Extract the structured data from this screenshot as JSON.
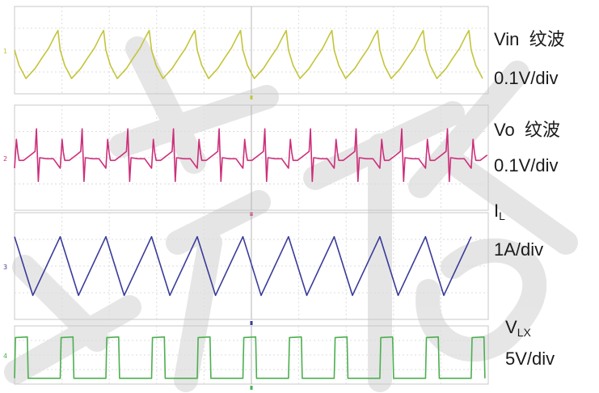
{
  "chart_data": {
    "type": "line",
    "period_div": 0.964,
    "points_per_period": 24,
    "panels": [
      {
        "id": "vin",
        "title": "Vin 纹波",
        "title_main": "Vin",
        "title_suffix": "纹波",
        "scale": "0.1V/div",
        "color": "#c4c43a",
        "ground_marker_label": "1",
        "xlim": [
          0,
          10
        ],
        "ylim": [
          -1,
          1
        ],
        "cycle": [
          [
            0.0,
            0.0
          ],
          [
            0.1,
            -0.35
          ],
          [
            0.25,
            -0.65
          ],
          [
            0.45,
            -0.42
          ],
          [
            0.6,
            -0.18
          ],
          [
            0.75,
            0.05
          ],
          [
            0.88,
            0.32
          ],
          [
            0.95,
            0.45
          ],
          [
            1.0,
            0.0
          ]
        ]
      },
      {
        "id": "vo",
        "title": "Vo 纹波",
        "title_main": "Vo",
        "title_suffix": "纹波",
        "scale": "0.1V/div",
        "color": "#cc2f7a",
        "ground_marker_label": "2",
        "xlim": [
          0,
          10
        ],
        "ylim": [
          -1,
          1
        ],
        "cycle": [
          [
            0.0,
            -0.2
          ],
          [
            0.04,
            0.35
          ],
          [
            0.07,
            0.1
          ],
          [
            0.1,
            -0.05
          ],
          [
            0.2,
            -0.05
          ],
          [
            0.35,
            0.05
          ],
          [
            0.45,
            0.12
          ],
          [
            0.48,
            0.55
          ],
          [
            0.52,
            -0.45
          ],
          [
            0.55,
            0.0
          ],
          [
            0.7,
            -0.02
          ],
          [
            0.85,
            -0.02
          ],
          [
            1.0,
            -0.2
          ]
        ]
      },
      {
        "id": "il",
        "title": "IL",
        "title_main": "I",
        "title_sub": "L",
        "scale": "1A/div",
        "color": "#3a3a9a",
        "ground_marker_label": "3",
        "xlim": [
          0,
          10
        ],
        "ylim": [
          -1,
          1
        ],
        "cycle": [
          [
            0.0,
            0.55
          ],
          [
            0.4,
            -0.55
          ],
          [
            1.0,
            0.55
          ]
        ]
      },
      {
        "id": "vlx",
        "title": "VLX",
        "title_main": "V",
        "title_sub": "LX",
        "scale": "5V/div",
        "color": "#4caf50",
        "ground_marker_label": "4",
        "xlim": [
          0,
          10
        ],
        "ylim": [
          -1,
          1
        ],
        "cycle": [
          [
            0.0,
            -0.8
          ],
          [
            0.02,
            0.6
          ],
          [
            0.28,
            0.62
          ],
          [
            0.3,
            -0.8
          ],
          [
            1.0,
            -0.8
          ]
        ]
      }
    ]
  }
}
